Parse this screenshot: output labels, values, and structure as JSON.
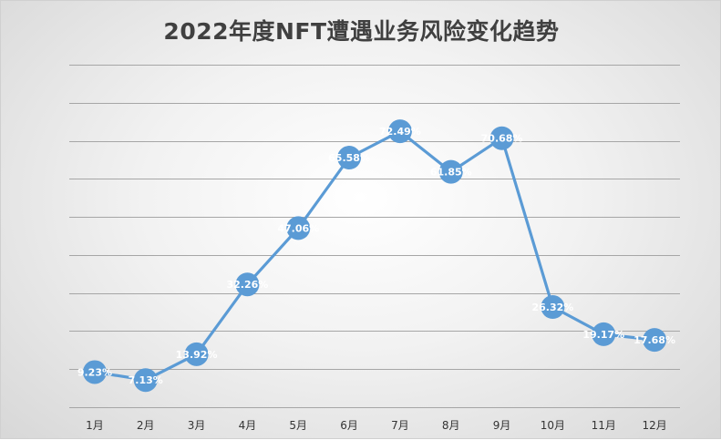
{
  "chart_data": {
    "type": "line",
    "title": "2022年度NFT遭遇业务风险变化趋势",
    "categories": [
      "1月",
      "2月",
      "3月",
      "4月",
      "5月",
      "6月",
      "7月",
      "8月",
      "9月",
      "10月",
      "11月",
      "12月"
    ],
    "series": [
      {
        "values": [
          9.23,
          7.13,
          13.92,
          32.26,
          47.06,
          65.58,
          72.49,
          61.85,
          70.68,
          26.32,
          19.17,
          17.68
        ],
        "labels": [
          "9.23%",
          "7.13%",
          "13.92%",
          "32.26%",
          "47.06%",
          "65.58%",
          "72.49%",
          "61.85%",
          "70.68%",
          "26.32%",
          "19.17%",
          "17.68%"
        ]
      }
    ],
    "ylim": [
      0,
      90
    ],
    "ytick_step": 10,
    "y_axis_labels_shown": false,
    "grid": true,
    "legend": false,
    "colors": {
      "series": "#5b9bd5",
      "grid": "#a6a6a6",
      "data_label": "#ffffff"
    }
  }
}
